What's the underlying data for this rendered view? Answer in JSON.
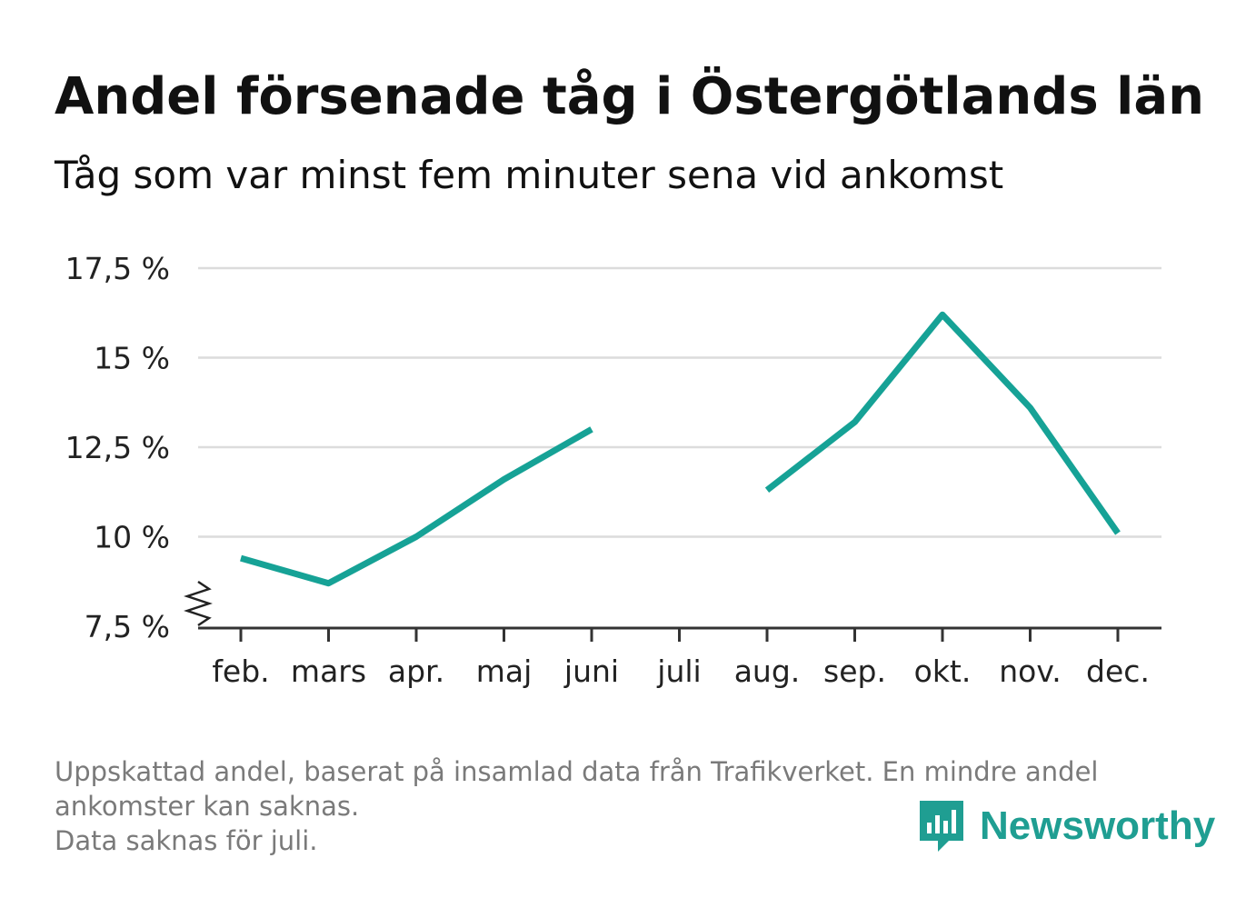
{
  "header": {
    "title": "Andel försenade tåg i Östergötlands län",
    "subtitle": "Tåg som var minst fem minuter sena vid ankomst"
  },
  "chart_data": {
    "type": "line",
    "categories": [
      "feb.",
      "mars",
      "apr.",
      "maj",
      "juni",
      "juli",
      "aug.",
      "sep.",
      "okt.",
      "nov.",
      "dec."
    ],
    "series": [
      {
        "values": [
          9.4,
          8.7,
          10.0,
          11.6,
          13.0,
          null,
          11.3,
          13.2,
          16.2,
          13.6,
          10.1
        ]
      }
    ],
    "y_ticks": [
      {
        "value": 7.5,
        "label": "7,5 %"
      },
      {
        "value": 10,
        "label": "10 %"
      },
      {
        "value": 12.5,
        "label": "12,5 %"
      },
      {
        "value": 15,
        "label": "15 %"
      },
      {
        "value": 17.5,
        "label": "17,5 %"
      }
    ],
    "ylim": [
      7.5,
      17.5
    ],
    "y_axis_break": true,
    "grid": "horizontal",
    "line_color": "#16a296"
  },
  "footer": {
    "note_line1": "Uppskattad andel, baserat på insamlad data från Trafikverket. En mindre andel ankomster kan saknas.",
    "note_line2": "Data saknas för juli."
  },
  "brand": {
    "name": "Newsworthy",
    "icon": "newsworthy-logo-icon",
    "color": "#1f9e92"
  }
}
